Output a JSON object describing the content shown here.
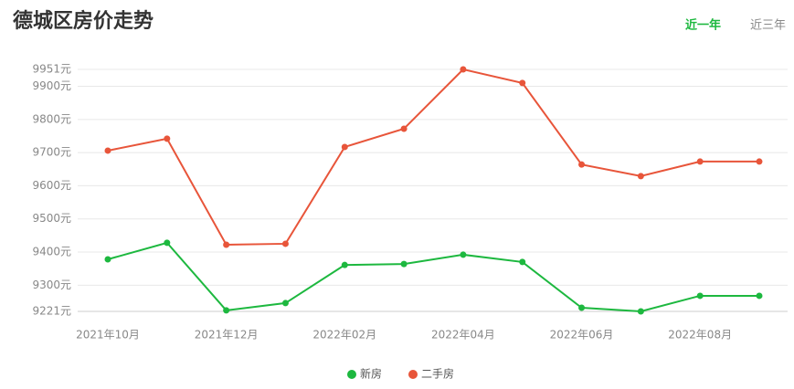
{
  "tabs": [
    "近一年",
    "近三年"
  ],
  "chart_data": {
    "type": "line",
    "title": "德城区房价走势",
    "categories": [
      "2021年10月",
      null,
      "2021年12月",
      null,
      "2022年02月",
      null,
      "2022年04月",
      null,
      "2022年06月",
      null,
      "2022年08月",
      null
    ],
    "series": [
      {
        "name": "新房",
        "color": "#1db83f",
        "values": [
          9378,
          9428,
          9224,
          9246,
          9361,
          9364,
          9392,
          9370,
          9232,
          9221,
          9268,
          9268
        ]
      },
      {
        "name": "二手房",
        "color": "#e8553a",
        "values": [
          9706,
          9742,
          9422,
          9425,
          9717,
          9772,
          9951,
          9910,
          9664,
          9629,
          9673,
          9673
        ]
      }
    ],
    "ylim": [
      9221,
      9951
    ],
    "yticks": [
      {
        "value": 9221,
        "label": "9221元"
      },
      {
        "value": 9300,
        "label": "9300元"
      },
      {
        "value": 9400,
        "label": "9400元"
      },
      {
        "value": 9500,
        "label": "9500元"
      },
      {
        "value": 9600,
        "label": "9600元"
      },
      {
        "value": 9700,
        "label": "9700元"
      },
      {
        "value": 9800,
        "label": "9800元"
      },
      {
        "value": 9900,
        "label": "9900元"
      },
      {
        "value": 9951,
        "label": "9951元"
      }
    ],
    "grid": true,
    "legend": "bottom"
  }
}
